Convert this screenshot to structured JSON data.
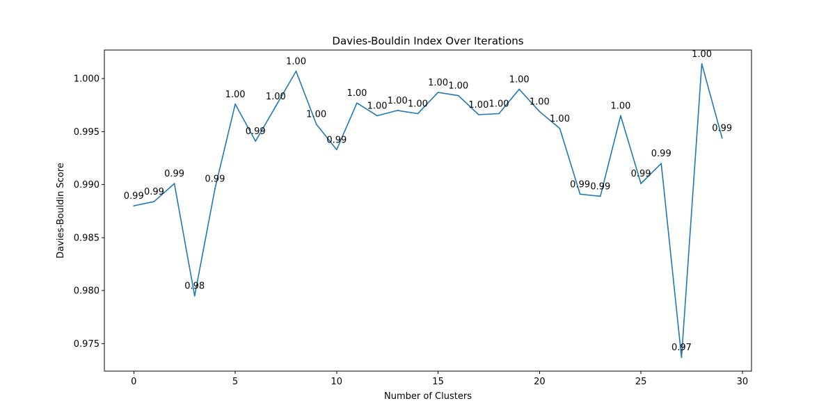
{
  "chart_data": {
    "type": "line",
    "title": "Davies-Bouldin Index Over Iterations",
    "xlabel": "Number of Clusters",
    "ylabel": "Davies-Bouldin Score",
    "xlim": [
      -1.45,
      30.45
    ],
    "ylim": [
      0.9724,
      1.0027
    ],
    "x_ticks": [
      0,
      5,
      10,
      15,
      20,
      25,
      30
    ],
    "y_ticks": [
      0.975,
      0.98,
      0.985,
      0.99,
      0.995,
      1.0
    ],
    "y_tick_labels": [
      "0.975",
      "0.980",
      "0.985",
      "0.990",
      "0.995",
      "1.000"
    ],
    "grid": false,
    "series": [
      {
        "color": "#1f77b4",
        "x": [
          0,
          1,
          2,
          3,
          4,
          5,
          6,
          7,
          8,
          9,
          10,
          11,
          12,
          13,
          14,
          15,
          16,
          17,
          18,
          19,
          20,
          21,
          22,
          23,
          24,
          25,
          26,
          27,
          28,
          29
        ],
        "values": [
          0.988,
          0.9884,
          0.9901,
          0.9795,
          0.9896,
          0.9976,
          0.9941,
          0.9974,
          1.0007,
          0.9957,
          0.9933,
          0.9977,
          0.9965,
          0.997,
          0.9967,
          0.9987,
          0.9984,
          0.9966,
          0.9967,
          0.999,
          0.9969,
          0.9953,
          0.9891,
          0.9889,
          0.9965,
          0.9901,
          0.992,
          0.9737,
          1.0014,
          0.9944
        ],
        "labels": [
          "0.99",
          "0.99",
          "0.99",
          "0.98",
          "0.99",
          "1.00",
          "0.99",
          "1.00",
          "1.00",
          "1.00",
          "0.99",
          "1.00",
          "1.00",
          "1.00",
          "1.00",
          "1.00",
          "1.00",
          "1.00",
          "1.00",
          "1.00",
          "1.00",
          "1.00",
          "0.99",
          "0.99",
          "1.00",
          "0.99",
          "0.99",
          "0.97",
          "1.00",
          "0.99"
        ]
      }
    ]
  }
}
